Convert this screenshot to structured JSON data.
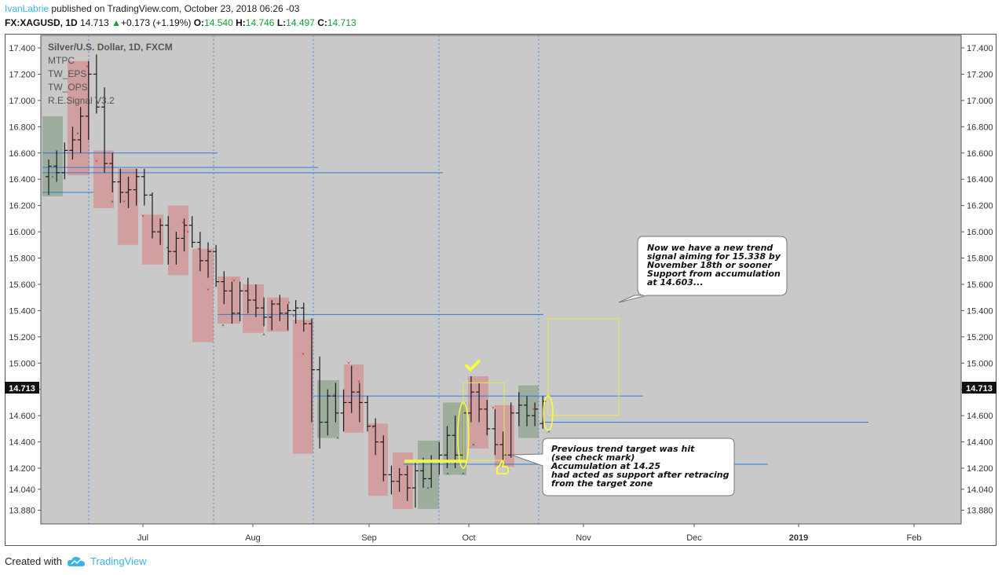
{
  "header": {
    "author": "IvanLabrie",
    "published_text": " published on TradingView.com, October 23, 2018 06:26 -03",
    "symbol": "FX:XAGUSD, 1D",
    "last": "14.713",
    "change": "+0.173 (+1.19%)",
    "o_label": "O:",
    "o_value": "14.540",
    "h_label": "H:",
    "h_value": "14.746",
    "l_label": "L:",
    "l_value": "14.497",
    "c_label": "C:",
    "c_value": "14.713"
  },
  "legend": {
    "title": "Silver/U.S. Dollar, 1D, FXCM",
    "items": [
      "MTPC",
      "TW_EPS",
      "TW_OPS",
      "R.E.Signal V3.2"
    ]
  },
  "price_tag": "14.713",
  "footer": {
    "created_with": "Created with",
    "brand": "TradingView"
  },
  "colors": {
    "up_box": "#9aaa9a",
    "down_box": "#d29a9a",
    "hline": "#2f7ad6",
    "accent_yellow": "#ffff33",
    "signal_red": "#e53935",
    "signal_green": "#2e7d32",
    "bg": "#c9c9c9"
  },
  "chart_data": {
    "type": "candlestick",
    "title": "Silver/U.S. Dollar, 1D, FXCM",
    "y_ticks": [
      "17.400",
      "17.200",
      "17.000",
      "16.800",
      "16.600",
      "16.400",
      "16.200",
      "16.000",
      "15.800",
      "15.600",
      "15.400",
      "15.200",
      "15.000",
      "14.800",
      "14.600",
      "14.400",
      "14.200",
      "14.040",
      "13.880"
    ],
    "x_ticks": [
      "Jul",
      "Aug",
      "Sep",
      "Oct",
      "Nov",
      "Dec",
      "2019",
      "Feb"
    ],
    "candles": [
      [
        16.42,
        16.55,
        16.28,
        16.5
      ],
      [
        16.5,
        16.62,
        16.38,
        16.45
      ],
      [
        16.45,
        16.68,
        16.4,
        16.62
      ],
      [
        16.62,
        16.8,
        16.55,
        16.7
      ],
      [
        16.7,
        16.95,
        16.6,
        16.88
      ],
      [
        16.88,
        17.3,
        16.7,
        17.2
      ],
      [
        17.2,
        17.35,
        16.9,
        16.95
      ],
      [
        16.95,
        17.1,
        16.45,
        16.52
      ],
      [
        16.52,
        16.6,
        16.3,
        16.38
      ],
      [
        16.38,
        16.48,
        16.22,
        16.3
      ],
      [
        16.3,
        16.42,
        16.18,
        16.32
      ],
      [
        16.32,
        16.48,
        16.2,
        16.42
      ],
      [
        16.42,
        16.48,
        16.2,
        16.28
      ],
      [
        16.28,
        16.3,
        15.95,
        16.0
      ],
      [
        16.0,
        16.1,
        15.9,
        16.05
      ],
      [
        16.05,
        16.12,
        15.75,
        15.85
      ],
      [
        15.85,
        16.0,
        15.75,
        15.95
      ],
      [
        15.95,
        16.1,
        15.85,
        16.05
      ],
      [
        16.05,
        16.12,
        15.88,
        15.92
      ],
      [
        15.92,
        16.0,
        15.7,
        15.78
      ],
      [
        15.78,
        15.92,
        15.65,
        15.85
      ],
      [
        15.85,
        15.9,
        15.58,
        15.62
      ],
      [
        15.62,
        15.7,
        15.45,
        15.55
      ],
      [
        15.55,
        15.62,
        15.3,
        15.38
      ],
      [
        15.38,
        15.62,
        15.32,
        15.55
      ],
      [
        15.55,
        15.65,
        15.38,
        15.48
      ],
      [
        15.48,
        15.6,
        15.35,
        15.42
      ],
      [
        15.42,
        15.5,
        15.28,
        15.35
      ],
      [
        15.35,
        15.48,
        15.25,
        15.45
      ],
      [
        15.45,
        15.52,
        15.32,
        15.38
      ],
      [
        15.38,
        15.45,
        15.25,
        15.4
      ],
      [
        15.4,
        15.48,
        15.3,
        15.42
      ],
      [
        15.42,
        15.46,
        15.24,
        15.3
      ],
      [
        15.3,
        15.34,
        14.55,
        14.95
      ],
      [
        14.95,
        15.05,
        14.35,
        14.55
      ],
      [
        14.55,
        14.8,
        14.45,
        14.75
      ],
      [
        14.75,
        14.85,
        14.55,
        14.62
      ],
      [
        14.62,
        14.8,
        14.48,
        14.7
      ],
      [
        14.7,
        14.98,
        14.62,
        14.78
      ],
      [
        14.78,
        14.85,
        14.55,
        14.7
      ],
      [
        14.7,
        14.75,
        14.48,
        14.52
      ],
      [
        14.52,
        14.58,
        14.3,
        14.4
      ],
      [
        14.4,
        14.45,
        14.1,
        14.15
      ],
      [
        14.15,
        14.22,
        14.0,
        14.1
      ],
      [
        14.1,
        14.2,
        14.02,
        14.15
      ],
      [
        14.15,
        14.22,
        13.95,
        14.05
      ],
      [
        14.05,
        14.25,
        13.9,
        14.18
      ],
      [
        14.18,
        14.28,
        14.05,
        14.12
      ],
      [
        14.12,
        14.3,
        14.05,
        14.25
      ],
      [
        14.25,
        14.4,
        14.15,
        14.3
      ],
      [
        14.3,
        14.52,
        14.2,
        14.45
      ],
      [
        14.45,
        14.6,
        14.2,
        14.3
      ],
      [
        14.3,
        14.68,
        14.25,
        14.62
      ],
      [
        14.62,
        14.9,
        14.55,
        14.78
      ],
      [
        14.78,
        14.85,
        14.55,
        14.65
      ],
      [
        14.65,
        14.72,
        14.45,
        14.5
      ],
      [
        14.5,
        14.65,
        14.3,
        14.38
      ],
      [
        14.38,
        14.48,
        14.22,
        14.3
      ],
      [
        14.3,
        14.7,
        14.28,
        14.62
      ],
      [
        14.62,
        14.78,
        14.52,
        14.68
      ],
      [
        14.68,
        14.75,
        14.52,
        14.6
      ],
      [
        14.6,
        14.7,
        14.52,
        14.65
      ],
      [
        14.54,
        14.75,
        14.5,
        14.71
      ]
    ],
    "horizontal_levels": [
      16.6,
      16.49,
      16.45,
      16.3,
      15.37,
      14.75,
      14.55,
      14.23
    ],
    "annotations": [
      {
        "text": [
          "Now we have a new trend",
          "signal aiming for 15.338 by",
          "November 18th or sooner",
          "Support from accumulation",
          "at 14.603..."
        ]
      },
      {
        "text": [
          "Previous trend target was hit",
          "(see check mark)",
          "Accumulation at 14.25",
          "had acted as support after retracing",
          "from the target zone"
        ]
      }
    ],
    "ylim": [
      13.8,
      17.48
    ]
  }
}
